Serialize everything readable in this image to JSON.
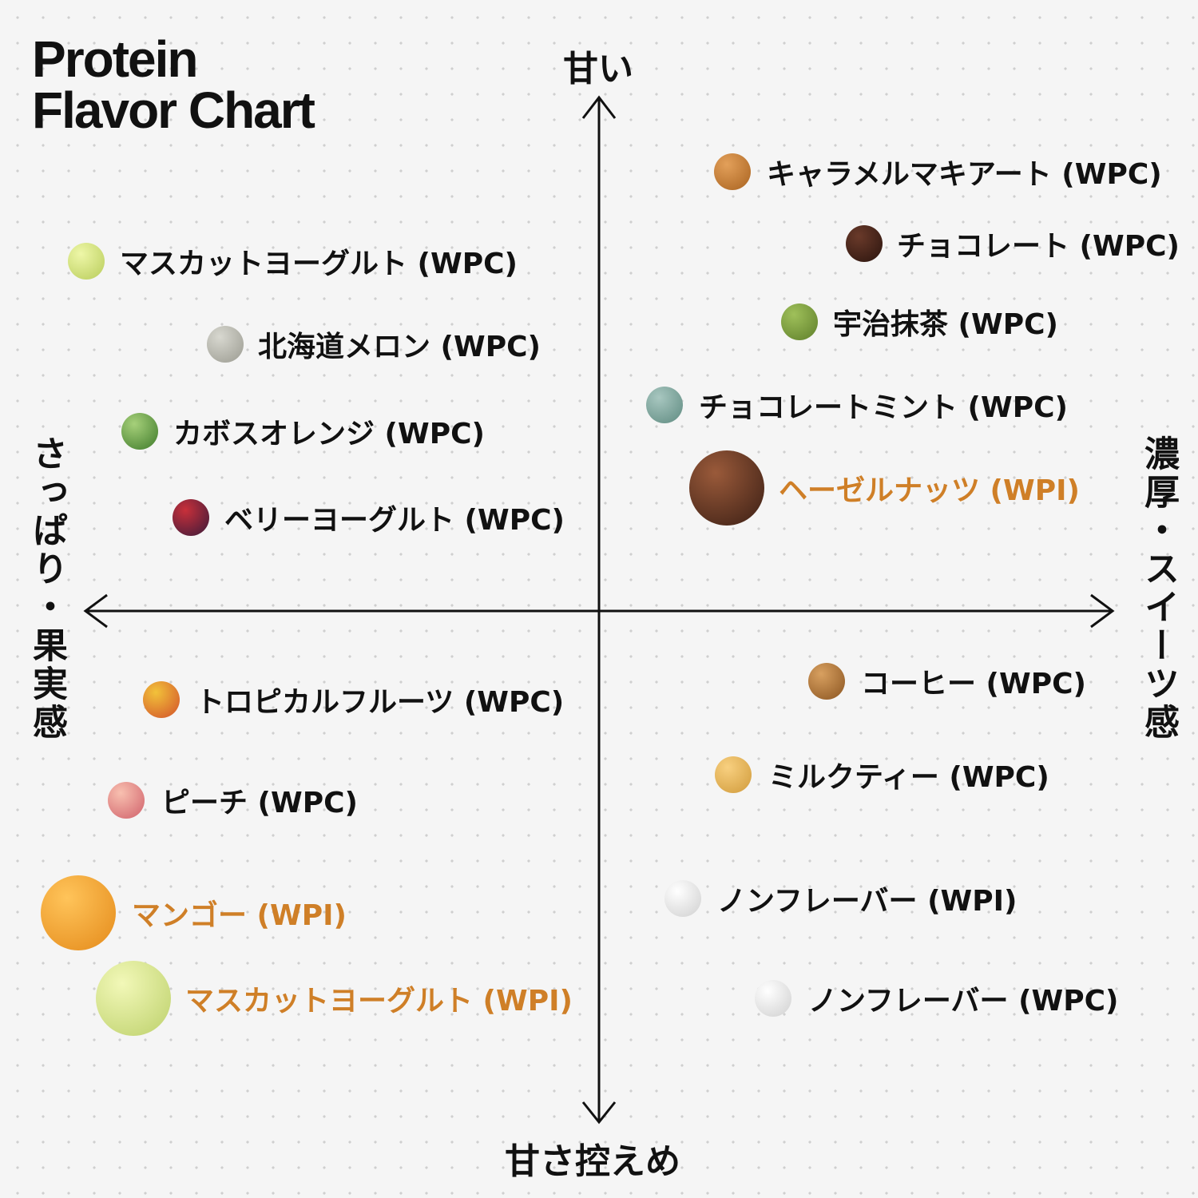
{
  "header": {
    "title": [
      "Protein",
      "Flavor Chart"
    ]
  },
  "axes": {
    "top": "甘い",
    "bottom": "甘さ控えめ",
    "left": "さっぱり・果実感",
    "right": "濃厚・スイーツ感"
  },
  "items": [
    {
      "label": "キャラメルマキアート (WPC)"
    },
    {
      "label": "チョコレート (WPC)"
    },
    {
      "label": "宇治抹茶 (WPC)"
    },
    {
      "label": "チョコレートミント (WPC)"
    },
    {
      "label": "ヘーゼルナッツ (WPI)"
    },
    {
      "label": "マスカットヨーグルト (WPC)"
    },
    {
      "label": "北海道メロン (WPC)"
    },
    {
      "label": "カボスオレンジ (WPC)"
    },
    {
      "label": "ベリーヨーグルト (WPC)"
    },
    {
      "label": "トロピカルフルーツ (WPC)"
    },
    {
      "label": "ピーチ (WPC)"
    },
    {
      "label": "マンゴー (WPI)"
    },
    {
      "label": "マスカットヨーグルト (WPI)"
    },
    {
      "label": "コーヒー (WPC)"
    },
    {
      "label": "ミルクティー (WPC)"
    },
    {
      "label": "ノンフレーバー (WPI)"
    },
    {
      "label": "ノンフレーバー (WPC)"
    }
  ]
}
